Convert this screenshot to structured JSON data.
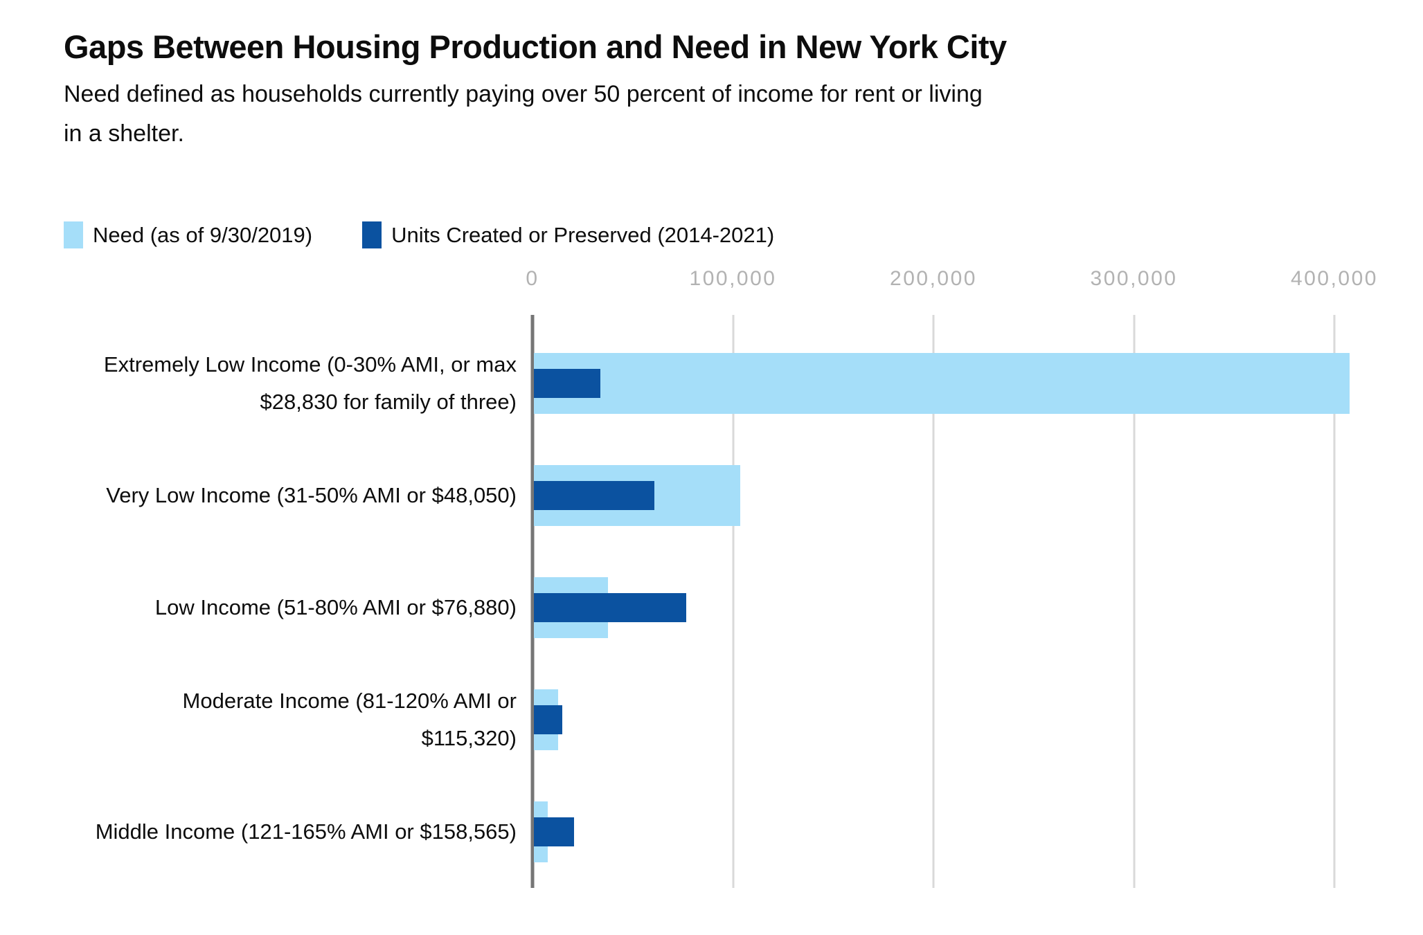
{
  "title": "Gaps Between Housing Production and Need in New York City",
  "subtitle_lines": [
    "Need defined as households currently paying over 50 percent of income for rent or living",
    "in a shelter."
  ],
  "legend": [
    {
      "label": "Need (as of 9/30/2019)",
      "color": "#a5def9"
    },
    {
      "label": "Units Created or Preserved (2014-2021)",
      "color": "#0b52a0"
    }
  ],
  "chart_data": {
    "type": "bar",
    "orientation": "horizontal",
    "title": "Gaps Between Housing Production and Need in New York City",
    "subtitle": "Need defined as households currently paying over 50 percent of income for rent or living in a shelter.",
    "categories": [
      "Extremely Low Income (0-30% AMI, or max $28,830 for family of three)",
      "Very Low Income (31-50% AMI or $48,050)",
      "Low Income (51-80% AMI or $76,880)",
      "Moderate Income (81-120% AMI or $115,320)",
      "Middle Income (121-165% AMI or $158,565)"
    ],
    "category_lines": [
      [
        "Extremely Low Income (0-30% AMI, or max",
        "$28,830 for family of three)"
      ],
      [
        "Very Low Income (31-50% AMI or $48,050)"
      ],
      [
        "Low Income (51-80% AMI or $76,880)"
      ],
      [
        "Moderate Income (81-120% AMI or",
        "$115,320)"
      ],
      [
        "Middle Income (121-165% AMI or $158,565)"
      ]
    ],
    "series": [
      {
        "name": "Need (as of 9/30/2019)",
        "color": "#a5def9",
        "values": [
          407000,
          103000,
          37000,
          12000,
          7000
        ]
      },
      {
        "name": "Units Created or Preserved (2014-2021)",
        "color": "#0b52a0",
        "values": [
          33000,
          60000,
          76000,
          14000,
          20000
        ]
      }
    ],
    "x_axis": {
      "min": 0,
      "max": 400000,
      "ticks": [
        0,
        100000,
        200000,
        300000,
        400000
      ],
      "tick_labels": [
        "0",
        "100,000",
        "200,000",
        "300,000",
        "400,000"
      ]
    },
    "ylabel": "",
    "xlabel": "",
    "grid": true,
    "legend_position": "top-left"
  },
  "colors": {
    "background": "#ffffff",
    "text": "#0d0d0d",
    "tick_text": "#b2b2b2",
    "axis_line": "#767676",
    "gridline": "#d9d9d9",
    "need_bar": "#a5def9",
    "units_bar": "#0b52a0"
  }
}
